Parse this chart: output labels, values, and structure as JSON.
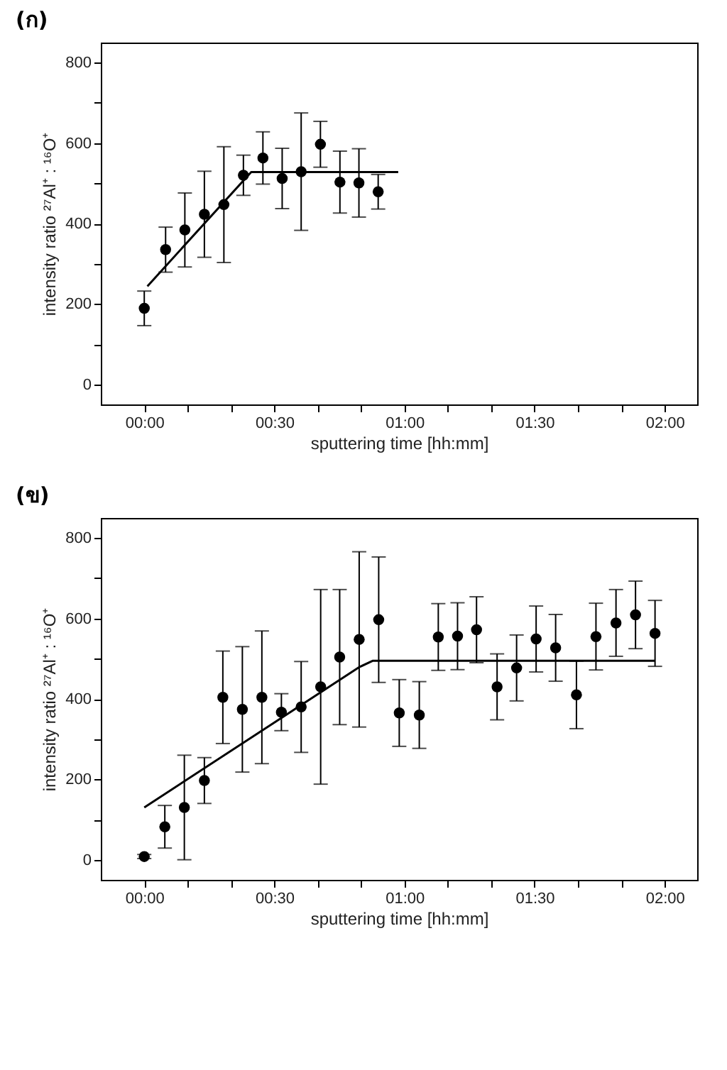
{
  "chart_data": [
    {
      "type": "scatter",
      "title": "(ก)",
      "xlabel": "sputtering time [hh:mm]",
      "ylabel": "intensity ratio ²⁷Al⁺ : ¹⁶O⁺",
      "xlim": [
        -0.167,
        2.125
      ],
      "ylim": [
        -50,
        850
      ],
      "xticks": [
        {
          "value": 0,
          "label": "00:00"
        },
        {
          "value": 0.1667,
          "label": null
        },
        {
          "value": 0.3333,
          "label": null
        },
        {
          "value": 0.5,
          "label": "00:30"
        },
        {
          "value": 0.6667,
          "label": null
        },
        {
          "value": 0.8333,
          "label": null
        },
        {
          "value": 1,
          "label": "01:00"
        },
        {
          "value": 1.1667,
          "label": null
        },
        {
          "value": 1.3333,
          "label": null
        },
        {
          "value": 1.5,
          "label": "01:30"
        },
        {
          "value": 1.6667,
          "label": null
        },
        {
          "value": 1.8333,
          "label": null
        },
        {
          "value": 2,
          "label": "02:00"
        }
      ],
      "yticks": [
        0,
        {
          "value": 100,
          "label": null
        },
        200,
        {
          "value": 300,
          "label": null
        },
        400,
        {
          "value": 500,
          "label": null
        },
        600,
        {
          "value": 700,
          "label": null
        },
        800
      ],
      "grid": false,
      "series": [
        {
          "marker": "circle",
          "color": "#000000",
          "x": [
            0,
            0.082,
            0.156,
            0.231,
            0.306,
            0.381,
            0.456,
            0.53,
            0.603,
            0.677,
            0.752,
            0.825,
            0.899
          ],
          "values": [
            189,
            335,
            384,
            423,
            447,
            520,
            563,
            512,
            529,
            597,
            503,
            501,
            479
          ],
          "errors": [
            43,
            56,
            92,
            107,
            144,
            50,
            65,
            75,
            146,
            57,
            77,
            85,
            43
          ]
        },
        {
          "type": "line",
          "marker": "none",
          "color": "#000000",
          "x": [
            0.012,
            0.411,
            0.976
          ],
          "values": [
            244,
            528,
            528
          ]
        }
      ]
    },
    {
      "type": "scatter",
      "title": "(ข)",
      "xlabel": "sputtering time [hh:mm]",
      "ylabel": "intensity ratio ²⁷Al⁺ : ¹⁶O⁺",
      "xlim": [
        -0.167,
        2.125
      ],
      "ylim": [
        -50,
        850
      ],
      "xticks": [
        {
          "value": 0,
          "label": "00:00"
        },
        {
          "value": 0.1667,
          "label": null
        },
        {
          "value": 0.3333,
          "label": null
        },
        {
          "value": 0.5,
          "label": "00:30"
        },
        {
          "value": 0.6667,
          "label": null
        },
        {
          "value": 0.8333,
          "label": null
        },
        {
          "value": 1,
          "label": "01:00"
        },
        {
          "value": 1.1667,
          "label": null
        },
        {
          "value": 1.3333,
          "label": null
        },
        {
          "value": 1.5,
          "label": "01:30"
        },
        {
          "value": 1.6667,
          "label": null
        },
        {
          "value": 1.8333,
          "label": null
        },
        {
          "value": 2,
          "label": "02:00"
        }
      ],
      "yticks": [
        0,
        {
          "value": 100,
          "label": null
        },
        200,
        {
          "value": 300,
          "label": null
        },
        400,
        {
          "value": 500,
          "label": null
        },
        600,
        {
          "value": 700,
          "label": null
        },
        800
      ],
      "grid": false,
      "series": [
        {
          "marker": "circle",
          "color": "#000000",
          "x": [
            0,
            0.079,
            0.154,
            0.231,
            0.302,
            0.377,
            0.452,
            0.527,
            0.603,
            0.678,
            0.751,
            0.826,
            0.901,
            0.98,
            1.057,
            1.13,
            1.204,
            1.277,
            1.356,
            1.431,
            1.506,
            1.581,
            1.661,
            1.736,
            1.813,
            1.888,
            1.963
          ],
          "values": [
            8,
            82,
            130,
            197,
            404,
            374,
            404,
            367,
            380,
            430,
            504,
            548,
            597,
            365,
            360,
            554,
            556,
            572,
            430,
            477,
            549,
            527,
            410,
            555,
            589,
            609,
            563
          ],
          "errors": [
            5,
            53,
            130,
            57,
            115,
            156,
            165,
            46,
            113,
            242,
            168,
            218,
            156,
            83,
            83,
            83,
            83,
            82,
            82,
            82,
            82,
            83,
            84,
            83,
            83,
            84,
            82
          ]
        },
        {
          "type": "line",
          "marker": "none",
          "color": "#000000",
          "x": [
            0,
            0.826,
            0.879,
            1.963
          ],
          "values": [
            130,
            479,
            495,
            495
          ]
        }
      ]
    }
  ]
}
